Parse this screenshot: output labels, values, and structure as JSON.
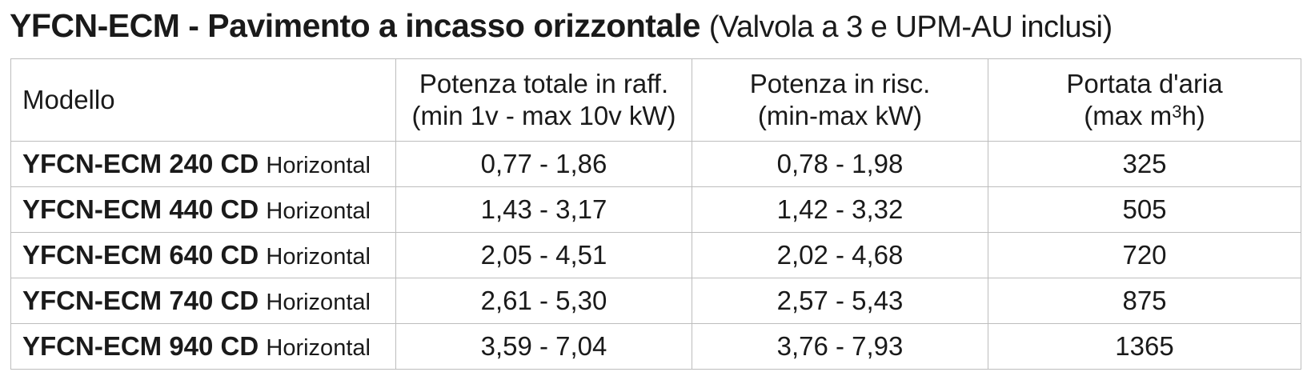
{
  "title": {
    "main": "YFCN-ECM - Pavimento a incasso orizzontale",
    "subtitle": "(Valvola a 3 e UPM-AU inclusi)"
  },
  "table": {
    "headers": {
      "model": "Modello",
      "cooling_line1": "Potenza totale in raff.",
      "cooling_line2": "(min 1v - max 10v kW)",
      "heating_line1": "Potenza in risc.",
      "heating_line2": "(min-max kW)",
      "airflow_line1": "Portata d'aria",
      "airflow_line2_prefix": "(max m",
      "airflow_line2_exp": "3",
      "airflow_line2_suffix": "h)"
    },
    "rows": [
      {
        "model": "YFCN-ECM 240 CD",
        "orientation": "Horizontal",
        "cooling": "0,77 - 1,86",
        "heating": "0,78 - 1,98",
        "airflow": "325"
      },
      {
        "model": "YFCN-ECM 440 CD",
        "orientation": "Horizontal",
        "cooling": "1,43 - 3,17",
        "heating": "1,42 - 3,32",
        "airflow": "505"
      },
      {
        "model": "YFCN-ECM 640 CD",
        "orientation": "Horizontal",
        "cooling": "2,05 - 4,51",
        "heating": "2,02 - 4,68",
        "airflow": "720"
      },
      {
        "model": "YFCN-ECM 740 CD",
        "orientation": "Horizontal",
        "cooling": "2,61 - 5,30",
        "heating": "2,57 - 5,43",
        "airflow": "875"
      },
      {
        "model": "YFCN-ECM 940 CD",
        "orientation": "Horizontal",
        "cooling": "3,59 - 7,04",
        "heating": "3,76 - 7,93",
        "airflow": "1365"
      }
    ]
  },
  "colors": {
    "text": "#1a1a1a",
    "border": "#bdbdbd",
    "background": "#ffffff"
  }
}
